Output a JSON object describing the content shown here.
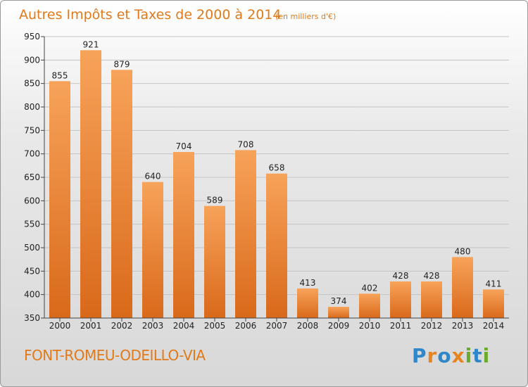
{
  "chart_data": {
    "type": "bar",
    "title": "Autres Impôts et Taxes de 2000 à 2014",
    "unit": "(en milliers d'€)",
    "categories": [
      "2000",
      "2001",
      "2002",
      "2003",
      "2004",
      "2005",
      "2006",
      "2007",
      "2008",
      "2009",
      "2010",
      "2011",
      "2012",
      "2013",
      "2014"
    ],
    "values": [
      855,
      921,
      879,
      640,
      704,
      589,
      708,
      658,
      413,
      374,
      402,
      428,
      428,
      480,
      411
    ],
    "ylim": [
      350,
      950
    ],
    "yticks": [
      350,
      400,
      450,
      500,
      550,
      600,
      650,
      700,
      750,
      800,
      850,
      900,
      950
    ],
    "grid": true,
    "bar_color": "#f0903a"
  },
  "commune": "FONT-ROMEU-ODEILLO-VIA",
  "logo": {
    "letters": [
      "P",
      "r",
      "o",
      "x",
      "i",
      "t",
      "i"
    ],
    "colors": [
      "#2f86c8",
      "#e8841f",
      "#2f86c8",
      "#e8841f",
      "#6aab2a",
      "#2f86c8",
      "#6aab2a"
    ]
  }
}
